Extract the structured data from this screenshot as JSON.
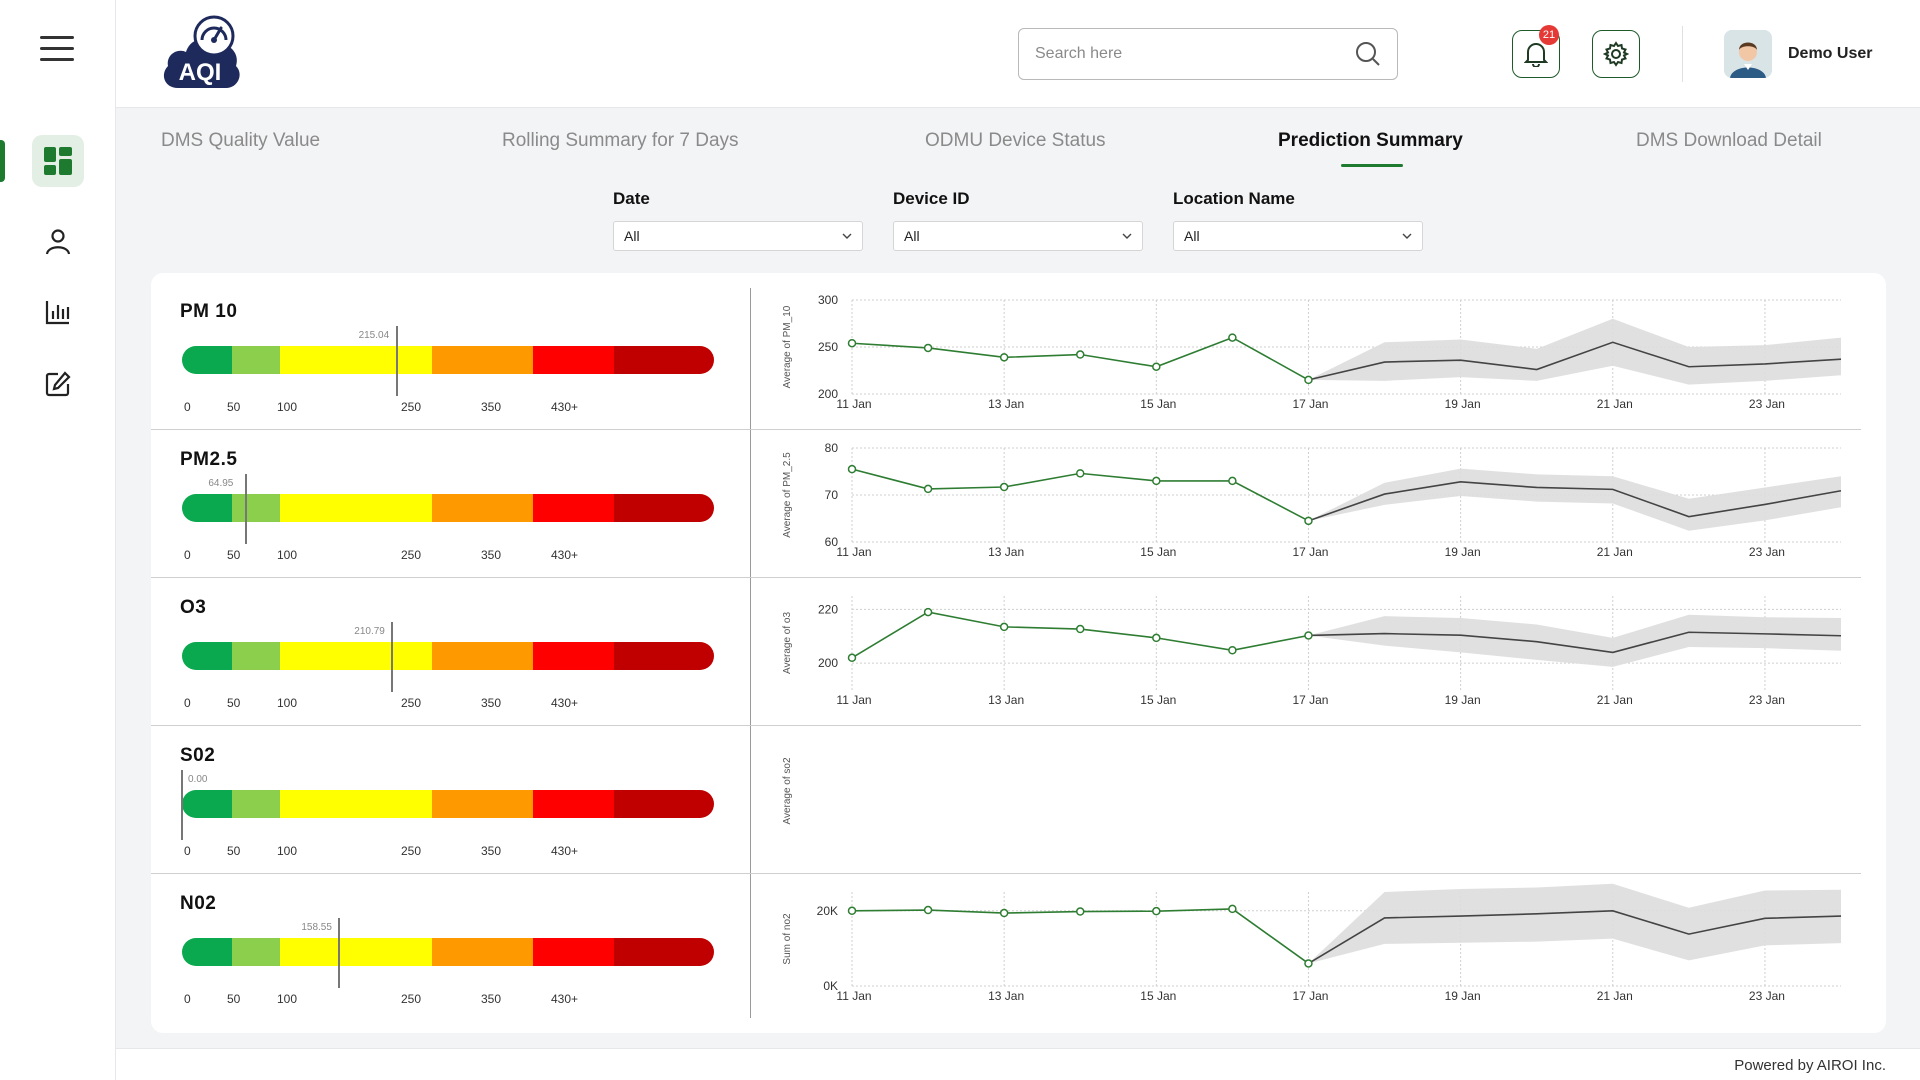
{
  "app": {
    "logo_text": "AQI"
  },
  "header": {
    "search_placeholder": "Search here",
    "notification_count": "21",
    "user_name": "Demo User"
  },
  "tabs": [
    {
      "label": "DMS Quality Value"
    },
    {
      "label": "Rolling Summary for 7 Days"
    },
    {
      "label": "ODMU Device Status"
    },
    {
      "label": "Prediction Summary"
    },
    {
      "label": "DMS Download Detail"
    }
  ],
  "filters": {
    "date": {
      "label": "Date",
      "value": "All"
    },
    "device": {
      "label": "Device ID",
      "value": "All"
    },
    "location": {
      "label": "Location Name",
      "value": "All"
    }
  },
  "scale_labels": [
    "0",
    "50",
    "100",
    "250",
    "350",
    "430+"
  ],
  "scale_breaks": [
    0,
    50,
    100,
    250,
    350,
    430,
    510
  ],
  "scale_colors": [
    "#0aa84f",
    "#8ccf4d",
    "#ffff00",
    "#ff9900",
    "#ff0000",
    "#c00000"
  ],
  "x_labels": [
    "11 Jan",
    "13 Jan",
    "15 Jan",
    "17 Jan",
    "19 Jan",
    "21 Jan",
    "23 Jan"
  ],
  "colors": {
    "actual": "#2e7d32",
    "forecast": "#444444",
    "band": "#dddddd",
    "accent": "#1e7a2e"
  },
  "pollutants": [
    {
      "name": "PM 10",
      "value": 215.04,
      "value_label": "215.04"
    },
    {
      "name": "PM2.5",
      "value": 64.95,
      "value_label": "64.95"
    },
    {
      "name": "O3",
      "value": 210.79,
      "value_label": "210.79"
    },
    {
      "name": "S02",
      "value": 0.0,
      "value_label": "0.00"
    },
    {
      "name": "N02",
      "value": 158.55,
      "value_label": "158.55"
    }
  ],
  "chart_data": [
    {
      "type": "line",
      "ylabel": "Average of PM_10",
      "ylim": [
        200,
        300
      ],
      "yticks": [
        "200",
        "250",
        "300"
      ],
      "actual_x": [
        11,
        12,
        13,
        14,
        15,
        16,
        17
      ],
      "actual_y": [
        254,
        249,
        239,
        242,
        229,
        260,
        215
      ],
      "forecast_x": [
        17,
        18,
        19,
        20,
        21,
        22,
        23,
        24
      ],
      "forecast_y": [
        215,
        234,
        236,
        226,
        255,
        229,
        232,
        237
      ],
      "band_low": [
        215,
        214,
        218,
        214,
        230,
        210,
        214,
        220
      ],
      "band_high": [
        215,
        255,
        258,
        248,
        280,
        250,
        252,
        260
      ]
    },
    {
      "type": "line",
      "ylabel": "Average of PM_2.5",
      "ylim": [
        60,
        80
      ],
      "yticks": [
        "60",
        "70",
        "80"
      ],
      "actual_x": [
        11,
        12,
        13,
        14,
        15,
        16,
        17
      ],
      "actual_y": [
        75.5,
        71.3,
        71.7,
        74.6,
        73,
        73,
        64.5
      ],
      "forecast_x": [
        17,
        18,
        19,
        20,
        21,
        22,
        23,
        24
      ],
      "forecast_y": [
        64.5,
        70.2,
        72.8,
        71.6,
        71.2,
        65.4,
        68,
        70.9
      ],
      "band_low": [
        64.5,
        67.9,
        69.8,
        68.6,
        68.2,
        62.4,
        64.6,
        67.4
      ],
      "band_high": [
        64.5,
        72.6,
        75.6,
        74.4,
        74,
        69.2,
        71.6,
        74
      ]
    },
    {
      "type": "line",
      "ylabel": "Average of o3",
      "ylim": [
        190,
        225
      ],
      "yticks": [
        "200",
        "220"
      ],
      "actual_x": [
        11,
        12,
        13,
        14,
        15,
        16,
        17
      ],
      "actual_y": [
        202,
        219,
        213.5,
        212.7,
        209.4,
        204.8,
        210.3
      ],
      "forecast_x": [
        17,
        18,
        19,
        20,
        21,
        22,
        23,
        24
      ],
      "forecast_y": [
        210.3,
        211,
        210.4,
        208,
        204,
        211.5,
        210.9,
        210.2
      ],
      "band_low": [
        210.3,
        206.5,
        204,
        201.2,
        198.6,
        206,
        205.6,
        204.6
      ],
      "band_high": [
        210.3,
        217.5,
        216.8,
        214.4,
        209.4,
        218,
        217.1,
        216.8
      ]
    },
    {
      "type": "line",
      "ylabel": "Average of so2",
      "ylim": [
        0,
        1
      ],
      "yticks": [],
      "actual_x": [],
      "actual_y": [],
      "forecast_x": [],
      "forecast_y": [],
      "band_low": [],
      "band_high": []
    },
    {
      "type": "line",
      "ylabel": "Sum of no2",
      "ylim": [
        0,
        25000
      ],
      "yticks": [
        "0K",
        "20K"
      ],
      "actual_x": [
        11,
        12,
        13,
        14,
        15,
        16,
        17
      ],
      "actual_y": [
        20000,
        20200,
        19400,
        19800,
        19900,
        20500,
        6000
      ],
      "forecast_x": [
        17,
        18,
        19,
        20,
        21,
        22,
        23,
        24
      ],
      "forecast_y": [
        6000,
        18100,
        18600,
        19200,
        20000,
        13800,
        18000,
        18600
      ],
      "band_low": [
        6000,
        11200,
        11500,
        11800,
        12600,
        6800,
        10800,
        11400
      ],
      "band_high": [
        6000,
        25000,
        25800,
        26200,
        27200,
        20800,
        25400,
        25600
      ]
    }
  ],
  "footer": {
    "text": "Powered by AIROI Inc."
  }
}
